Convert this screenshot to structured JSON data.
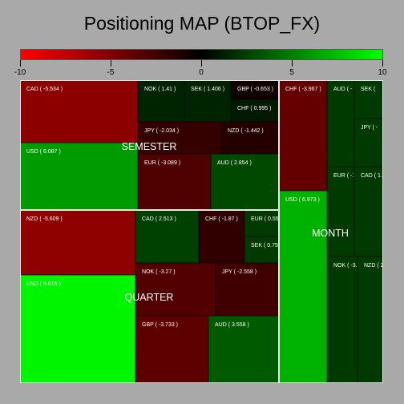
{
  "chart_data": {
    "type": "treemap",
    "title": "Positioning MAP (BTOP_FX)",
    "color_scale": {
      "min": -10,
      "max": 10,
      "ticks": [
        -10,
        -5,
        0,
        5,
        10
      ],
      "colors": {
        "low": "#ff0000",
        "mid": "#000000",
        "high": "#00ff00"
      }
    },
    "groups": [
      {
        "name": "SEMESTER",
        "items": [
          {
            "name": "CAD",
            "value": -5.534,
            "label": "CAD ( -5.534 )"
          },
          {
            "name": "USD",
            "value": 6.087,
            "label": "USD ( 6.087 )"
          },
          {
            "name": "NOK",
            "value": 1.41,
            "label": "NOK ( 1.41 )"
          },
          {
            "name": "SEK",
            "value": 1.406,
            "label": "SEK ( 1.406 )"
          },
          {
            "name": "GBP",
            "value": -0.653,
            "label": "GBP ( -0.653 )"
          },
          {
            "name": "CHF",
            "value": 0.995,
            "label": "CHF ( 0.995 )"
          },
          {
            "name": "JPY",
            "value": -2.034,
            "label": "JPY ( -2.034 )"
          },
          {
            "name": "NZD",
            "value": -1.442,
            "label": "NZD ( -1.442 )"
          },
          {
            "name": "EUR",
            "value": -3.089,
            "label": "EUR ( -3.089 )"
          },
          {
            "name": "AUD",
            "value": 2.854,
            "label": "AUD ( 2.854 )"
          }
        ]
      },
      {
        "name": "QUARTER",
        "items": [
          {
            "name": "NZD",
            "value": -5.609,
            "label": "NZD ( -5.609 )"
          },
          {
            "name": "USD",
            "value": 9.615,
            "label": "USD ( 9.615 )"
          },
          {
            "name": "CAD",
            "value": 2.513,
            "label": "CAD ( 2.513 )"
          },
          {
            "name": "CHF",
            "value": -1.87,
            "label": "CHF ( -1.87 )"
          },
          {
            "name": "EUR",
            "value": null,
            "label": "EUR ( 0.55"
          },
          {
            "name": "SEK",
            "value": null,
            "label": "SEK ( 0.75"
          },
          {
            "name": "NOK",
            "value": -3.27,
            "label": "NOK ( -3.27 )"
          },
          {
            "name": "JPY",
            "value": -2.558,
            "label": "JPY ( -2.558 )"
          },
          {
            "name": "GBP",
            "value": -3.733,
            "label": "GBP ( -3.733 )"
          },
          {
            "name": "AUD",
            "value": 3.558,
            "label": "AUD ( 3.558 )"
          }
        ]
      },
      {
        "name": "MONTH",
        "items": [
          {
            "name": "CHF",
            "value": -3.967,
            "label": "CHF ( -3.967 )"
          },
          {
            "name": "USD",
            "value": 6.973,
            "label": "USD ( 6.973 )"
          },
          {
            "name": "AUD",
            "value": null,
            "label": "AUD ( -"
          },
          {
            "name": "SEK",
            "value": null,
            "label": "SEK ("
          },
          {
            "name": "JPY",
            "value": null,
            "label": "JPY ( -"
          },
          {
            "name": "EUR",
            "value": null,
            "label": "EUR ( -1."
          },
          {
            "name": "CAD",
            "value": null,
            "label": "CAD ( 1."
          },
          {
            "name": "NOK",
            "value": null,
            "label": "NOK ( -3.0"
          },
          {
            "name": "NZD",
            "value": null,
            "label": "NZD ( 2."
          }
        ]
      }
    ]
  }
}
